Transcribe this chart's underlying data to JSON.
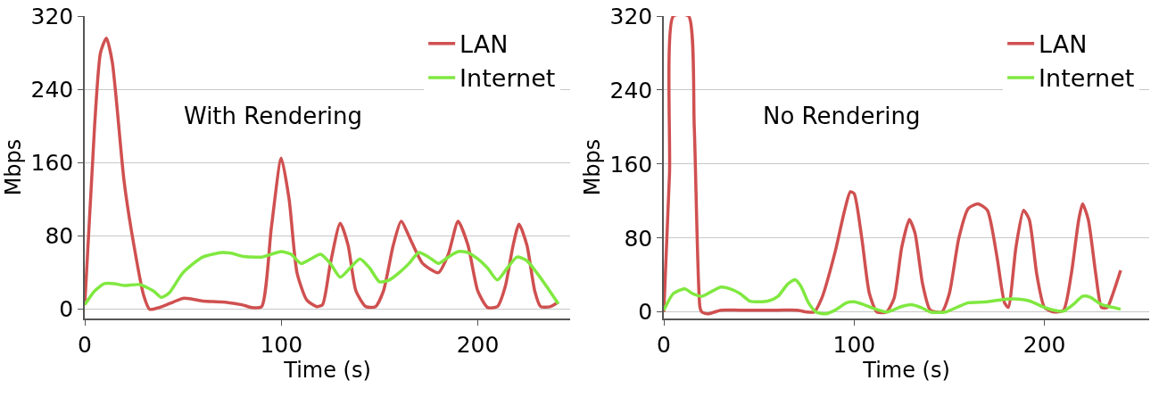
{
  "chart_data": [
    {
      "type": "line",
      "xlabel": "Time (s)",
      "ylabel": "Mbps",
      "annotations": [
        "With Rendering"
      ],
      "xlim": [
        0,
        247
      ],
      "xticks": [
        0,
        100,
        200
      ],
      "ylim": [
        -10,
        320
      ],
      "yticks": [
        0,
        80,
        160,
        240,
        320
      ],
      "grid": "y",
      "legend": "top right",
      "line_style": "solid",
      "marker": "none",
      "series": [
        {
          "name": "LAN",
          "color": "#d05050",
          "x": [
            0,
            5,
            8,
            11,
            14,
            20,
            25,
            30,
            33,
            38,
            45,
            50,
            55,
            60,
            70,
            80,
            85,
            90,
            95,
            100,
            104,
            108,
            113,
            118,
            121,
            125,
            130,
            134,
            138,
            143,
            148,
            152,
            157,
            161,
            166,
            172,
            180,
            185,
            190,
            195,
            200,
            205,
            210,
            214,
            218,
            221,
            225,
            229,
            232,
            237,
            241
          ],
          "values": [
            5,
            200,
            280,
            296,
            270,
            140,
            70,
            15,
            0,
            2,
            8,
            12,
            11,
            9,
            8,
            5,
            2,
            3,
            90,
            165,
            120,
            40,
            10,
            3,
            5,
            50,
            94,
            70,
            20,
            3,
            3,
            20,
            70,
            96,
            75,
            50,
            40,
            60,
            96,
            70,
            20,
            2,
            3,
            25,
            70,
            93,
            70,
            20,
            3,
            3,
            8
          ]
        },
        {
          "name": "Internet",
          "color": "#80e840",
          "x": [
            0,
            5,
            10,
            15,
            20,
            28,
            35,
            39,
            43,
            50,
            60,
            70,
            75,
            80,
            90,
            100,
            105,
            110,
            115,
            120,
            125,
            130,
            135,
            140,
            145,
            150,
            155,
            160,
            165,
            170,
            175,
            180,
            185,
            190,
            195,
            200,
            205,
            210,
            215,
            220,
            225,
            230,
            235,
            241
          ],
          "values": [
            5,
            20,
            28,
            28,
            26,
            27,
            20,
            13,
            18,
            40,
            57,
            62,
            61,
            58,
            57,
            63,
            60,
            50,
            55,
            60,
            50,
            35,
            45,
            55,
            45,
            30,
            32,
            40,
            50,
            62,
            57,
            50,
            57,
            63,
            62,
            55,
            45,
            32,
            45,
            57,
            53,
            40,
            25,
            6
          ]
        }
      ]
    },
    {
      "type": "line",
      "xlabel": "Time (s)",
      "ylabel": "Mbps",
      "annotations": [
        "No Rendering"
      ],
      "xlim": [
        0,
        255
      ],
      "xticks": [
        0,
        100,
        200
      ],
      "ylim": [
        -7,
        320
      ],
      "yticks": [
        0,
        80,
        160,
        240,
        320
      ],
      "grid": "y",
      "legend": "top right",
      "line_style": "solid",
      "marker": "none",
      "series": [
        {
          "name": "LAN",
          "color": "#d05050",
          "x": [
            0,
            3,
            5,
            13,
            16,
            19,
            20,
            23,
            30,
            40,
            60,
            70,
            75,
            79,
            83,
            90,
            95,
            98,
            100,
            104,
            108,
            112,
            117,
            121,
            125,
            129,
            132,
            136,
            140,
            146,
            150,
            155,
            160,
            165,
            170,
            175,
            179,
            181,
            185,
            189,
            192,
            196,
            200,
            205,
            210,
            214,
            218,
            220,
            223,
            227,
            230,
            233,
            236,
            240
          ],
          "values": [
            0,
            150,
            320,
            320,
            200,
            5,
            0,
            -2,
            2,
            2,
            2,
            2,
            0,
            0,
            15,
            65,
            110,
            130,
            128,
            80,
            20,
            0,
            0,
            15,
            70,
            100,
            85,
            30,
            2,
            0,
            20,
            80,
            112,
            117,
            110,
            60,
            10,
            5,
            70,
            110,
            100,
            40,
            5,
            0,
            2,
            40,
            100,
            117,
            100,
            40,
            5,
            5,
            20,
            45
          ]
        },
        {
          "name": "Internet",
          "color": "#80e840",
          "x": [
            0,
            5,
            11,
            15,
            20,
            25,
            30,
            35,
            40,
            45,
            50,
            55,
            60,
            65,
            69,
            72,
            76,
            80,
            85,
            90,
            96,
            100,
            105,
            110,
            117,
            125,
            130,
            135,
            140,
            148,
            155,
            160,
            170,
            180,
            186,
            192,
            200,
            205,
            210,
            215,
            220,
            224,
            230,
            236,
            240
          ],
          "values": [
            2,
            20,
            25,
            20,
            17,
            22,
            27,
            25,
            20,
            12,
            11,
            12,
            17,
            30,
            35,
            28,
            10,
            0,
            -2,
            2,
            10,
            11,
            8,
            4,
            0,
            6,
            8,
            5,
            0,
            0,
            6,
            10,
            11,
            14,
            14,
            12,
            5,
            2,
            1,
            8,
            17,
            16,
            8,
            5,
            3
          ]
        }
      ]
    }
  ]
}
